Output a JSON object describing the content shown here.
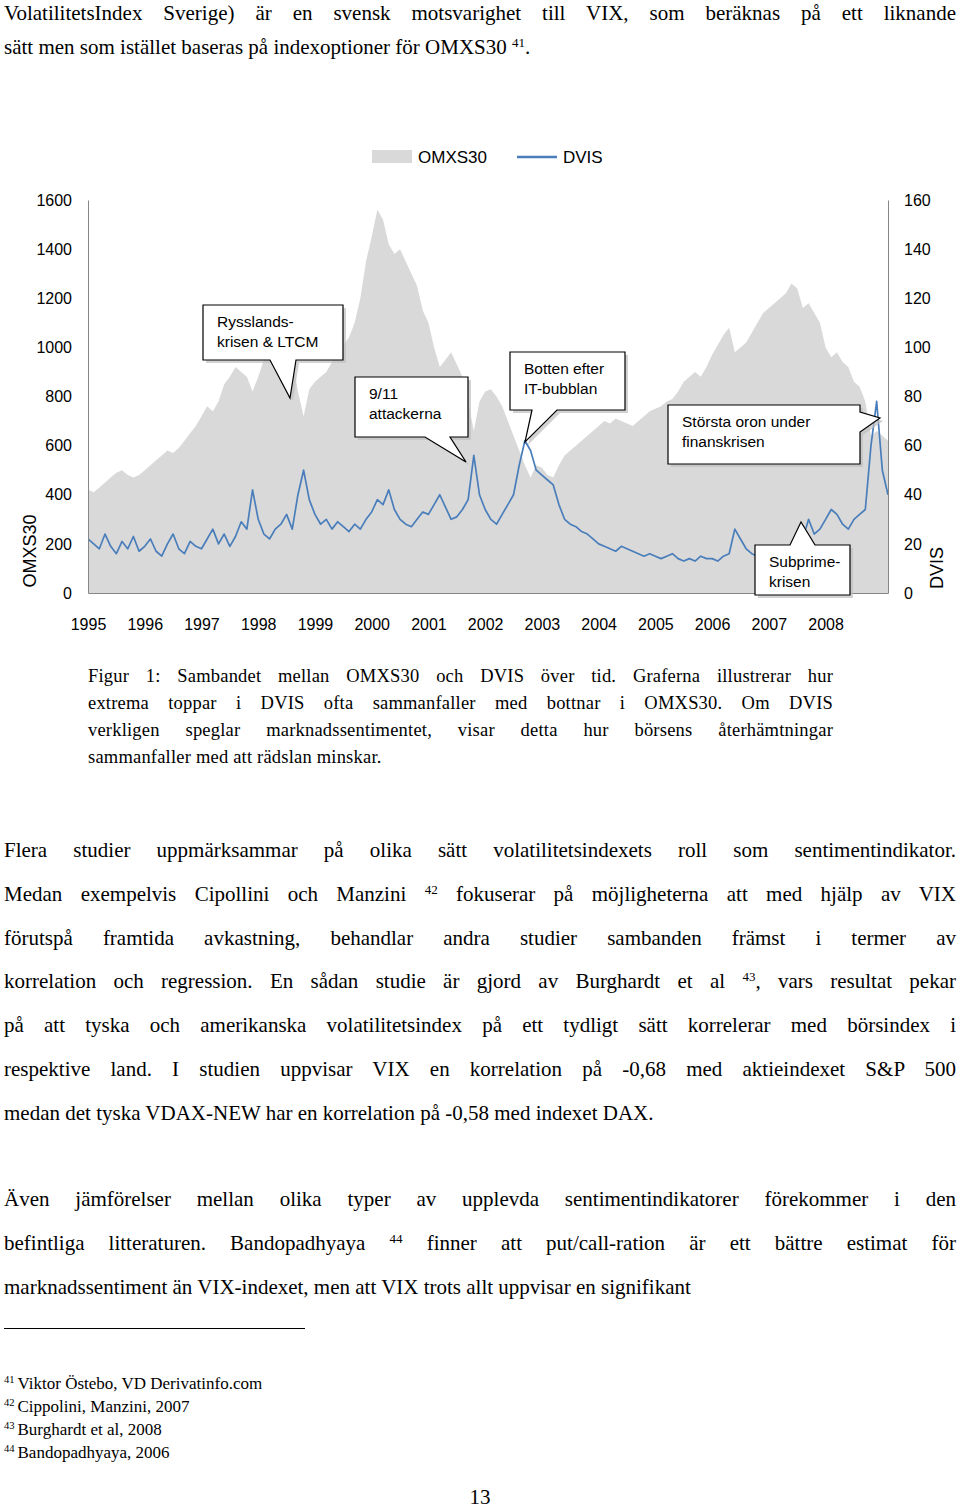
{
  "intro": {
    "lines": [
      [
        "VolatilitetsIndex Sverige) är en svensk motsvarighet till VIX, som beräknas på ett liknande"
      ],
      [
        "sätt men som istället baseras på indexoptioner för OMXS30 ",
        {
          "sup": "41"
        },
        "."
      ]
    ]
  },
  "chart_data": {
    "type": "line",
    "y_label": "OMXS30",
    "y2_label": "DVIS",
    "legend": "top",
    "xlim": [
      1995,
      2009.1
    ],
    "xticks": [
      1995,
      1996,
      1997,
      1998,
      1999,
      2000,
      2001,
      2002,
      2003,
      2004,
      2005,
      2006,
      2007,
      2008
    ],
    "ylim": [
      0,
      1600
    ],
    "yticks": [
      0,
      200,
      400,
      600,
      800,
      1000,
      1200,
      1400,
      1600
    ],
    "y2lim": [
      0,
      160
    ],
    "y2ticks": [
      0,
      20,
      40,
      60,
      80,
      100,
      120,
      140,
      160
    ],
    "x": [
      1995,
      1995.1,
      1995.2,
      1995.3,
      1995.4,
      1995.5,
      1995.6,
      1995.7,
      1995.8,
      1995.9,
      1996,
      1996.1,
      1996.2,
      1996.3,
      1996.4,
      1996.5,
      1996.6,
      1996.7,
      1996.8,
      1996.9,
      1997,
      1997.1,
      1997.2,
      1997.3,
      1997.4,
      1997.5,
      1997.6,
      1997.7,
      1997.8,
      1997.9,
      1998,
      1998.1,
      1998.2,
      1998.3,
      1998.4,
      1998.5,
      1998.6,
      1998.7,
      1998.8,
      1998.9,
      1999,
      1999.1,
      1999.2,
      1999.3,
      1999.4,
      1999.5,
      1999.6,
      1999.7,
      1999.8,
      1999.9,
      2000,
      2000.1,
      2000.2,
      2000.3,
      2000.4,
      2000.5,
      2000.6,
      2000.7,
      2000.8,
      2000.9,
      2001,
      2001.1,
      2001.2,
      2001.3,
      2001.4,
      2001.5,
      2001.6,
      2001.7,
      2001.8,
      2001.9,
      2002,
      2002.1,
      2002.2,
      2002.3,
      2002.4,
      2002.5,
      2002.6,
      2002.7,
      2002.8,
      2002.9,
      2003,
      2003.1,
      2003.2,
      2003.3,
      2003.4,
      2003.5,
      2003.6,
      2003.7,
      2003.8,
      2003.9,
      2004,
      2004.1,
      2004.2,
      2004.3,
      2004.4,
      2004.5,
      2004.6,
      2004.7,
      2004.8,
      2004.9,
      2005,
      2005.1,
      2005.2,
      2005.3,
      2005.4,
      2005.5,
      2005.6,
      2005.7,
      2005.8,
      2005.9,
      2006,
      2006.1,
      2006.2,
      2006.3,
      2006.4,
      2006.5,
      2006.6,
      2006.7,
      2006.8,
      2006.9,
      2007,
      2007.1,
      2007.2,
      2007.3,
      2007.4,
      2007.5,
      2007.6,
      2007.7,
      2007.8,
      2007.9,
      2008,
      2008.1,
      2008.2,
      2008.3,
      2008.4,
      2008.5,
      2008.6,
      2008.7,
      2008.8,
      2008.9,
      2009,
      2009.1
    ],
    "series": [
      {
        "name": "OMXS30",
        "type": "area",
        "color": "#d9d9d9",
        "values": [
          420,
          410,
          430,
          450,
          470,
          490,
          500,
          480,
          470,
          480,
          500,
          520,
          540,
          560,
          580,
          570,
          590,
          620,
          650,
          680,
          720,
          760,
          740,
          780,
          850,
          880,
          920,
          900,
          880,
          820,
          880,
          950,
          1000,
          1020,
          980,
          1010,
          960,
          820,
          720,
          830,
          860,
          880,
          900,
          940,
          980,
          1010,
          1040,
          1100,
          1200,
          1350,
          1450,
          1560,
          1520,
          1420,
          1380,
          1400,
          1350,
          1300,
          1250,
          1150,
          1100,
          1000,
          920,
          950,
          980,
          930,
          880,
          780,
          660,
          780,
          820,
          830,
          800,
          760,
          700,
          640,
          580,
          520,
          470,
          520,
          510,
          480,
          470,
          520,
          560,
          580,
          600,
          620,
          640,
          660,
          680,
          700,
          690,
          710,
          700,
          690,
          680,
          700,
          720,
          740,
          750,
          760,
          780,
          790,
          820,
          860,
          880,
          900,
          880,
          920,
          970,
          1010,
          1050,
          1080,
          980,
          1000,
          1020,
          1060,
          1100,
          1140,
          1160,
          1180,
          1200,
          1220,
          1260,
          1240,
          1160,
          1180,
          1140,
          1100,
          1000,
          960,
          980,
          940,
          920,
          860,
          840,
          780,
          640,
          660,
          640,
          620
        ]
      },
      {
        "name": "DVIS",
        "type": "line",
        "color": "#4a7ebb",
        "axis": "y2",
        "values": [
          22,
          20,
          18,
          24,
          19,
          16,
          21,
          18,
          23,
          17,
          19,
          22,
          17,
          15,
          20,
          24,
          18,
          16,
          21,
          19,
          18,
          22,
          26,
          20,
          24,
          19,
          23,
          29,
          26,
          42,
          30,
          24,
          22,
          26,
          28,
          32,
          26,
          40,
          50,
          38,
          32,
          28,
          30,
          26,
          29,
          27,
          25,
          28,
          26,
          30,
          33,
          38,
          36,
          42,
          34,
          30,
          28,
          27,
          30,
          33,
          32,
          36,
          40,
          35,
          30,
          31,
          34,
          38,
          56,
          40,
          34,
          30,
          28,
          32,
          36,
          40,
          52,
          62,
          58,
          50,
          48,
          46,
          44,
          36,
          30,
          28,
          27,
          25,
          24,
          22,
          20,
          19,
          18,
          17,
          19,
          18,
          17,
          16,
          15,
          16,
          15,
          14,
          15,
          16,
          14,
          13,
          14,
          13,
          15,
          14,
          14,
          13,
          15,
          16,
          26,
          22,
          18,
          16,
          15,
          14,
          14,
          15,
          18,
          16,
          15,
          18,
          22,
          30,
          24,
          26,
          30,
          34,
          32,
          28,
          26,
          30,
          32,
          34,
          60,
          78,
          50,
          40
        ]
      }
    ],
    "annotations": [
      {
        "text": [
          "Rysslands-",
          "krisen & LTCM"
        ]
      },
      {
        "text": [
          "9/11",
          "attackerna"
        ]
      },
      {
        "text": [
          "Botten efter",
          "IT-bubblan"
        ]
      },
      {
        "text": [
          "Största oron under",
          "finanskrisen"
        ]
      },
      {
        "text": [
          "Subprime-",
          "krisen"
        ]
      }
    ]
  },
  "caption": {
    "lines": [
      [
        "Figur 1: Sambandet mellan OMXS30 och DVIS över tid. Graferna illustrerar hur"
      ],
      [
        "extrema toppar i DVIS ofta sammanfaller med bottnar i OMXS30. Om DVIS"
      ],
      [
        "verkligen speglar marknadssentimentet, visar detta hur börsens återhämtningar"
      ],
      [
        "sammanfaller med att rädslan minskar."
      ]
    ]
  },
  "paragraphs": [
    {
      "lines": [
        [
          "Flera studier uppmärksammar på olika sätt volatilitetsindexets roll som sentimentindikator."
        ],
        [
          "Medan exempelvis Cipollini och Manzini ",
          {
            "sup": "42"
          },
          " fokuserar på möjligheterna att med hjälp av VIX"
        ],
        [
          "förutspå framtida avkastning, behandlar andra studier sambanden främst i termer av"
        ],
        [
          "korrelation och regression. En sådan studie är gjord av Burghardt et al ",
          {
            "sup": "43"
          },
          ", vars resultat pekar"
        ],
        [
          "på att tyska och amerikanska volatilitetsindex på ett tydligt sätt korrelerar med börsindex i"
        ],
        [
          "respektive land. I studien uppvisar VIX en korrelation på -0,68 med aktieindexet S&P 500"
        ],
        [
          "medan det tyska VDAX-NEW har en korrelation på -0,58 med indexet DAX."
        ]
      ]
    },
    {
      "lines": [
        [
          "Även jämförelser mellan olika typer av upplevda sentimentindikatorer förekommer i den"
        ],
        [
          "befintliga litteraturen. Bandopadhyaya ",
          {
            "sup": "44"
          },
          " finner att put/call-ration är ett bättre estimat för"
        ],
        [
          "marknadssentiment än VIX-indexet, men att VIX trots allt uppvisar en signifikant"
        ]
      ]
    }
  ],
  "footnotes": [
    {
      "mark": "41",
      "text": "Viktor Östebo, VD Derivatinfo.com"
    },
    {
      "mark": "42",
      "text": "Cippolini, Manzini, 2007"
    },
    {
      "mark": "43",
      "text": "Burghardt et al, 2008"
    },
    {
      "mark": "44",
      "text": "Bandopadhyaya, 2006"
    }
  ],
  "page_number": "13"
}
